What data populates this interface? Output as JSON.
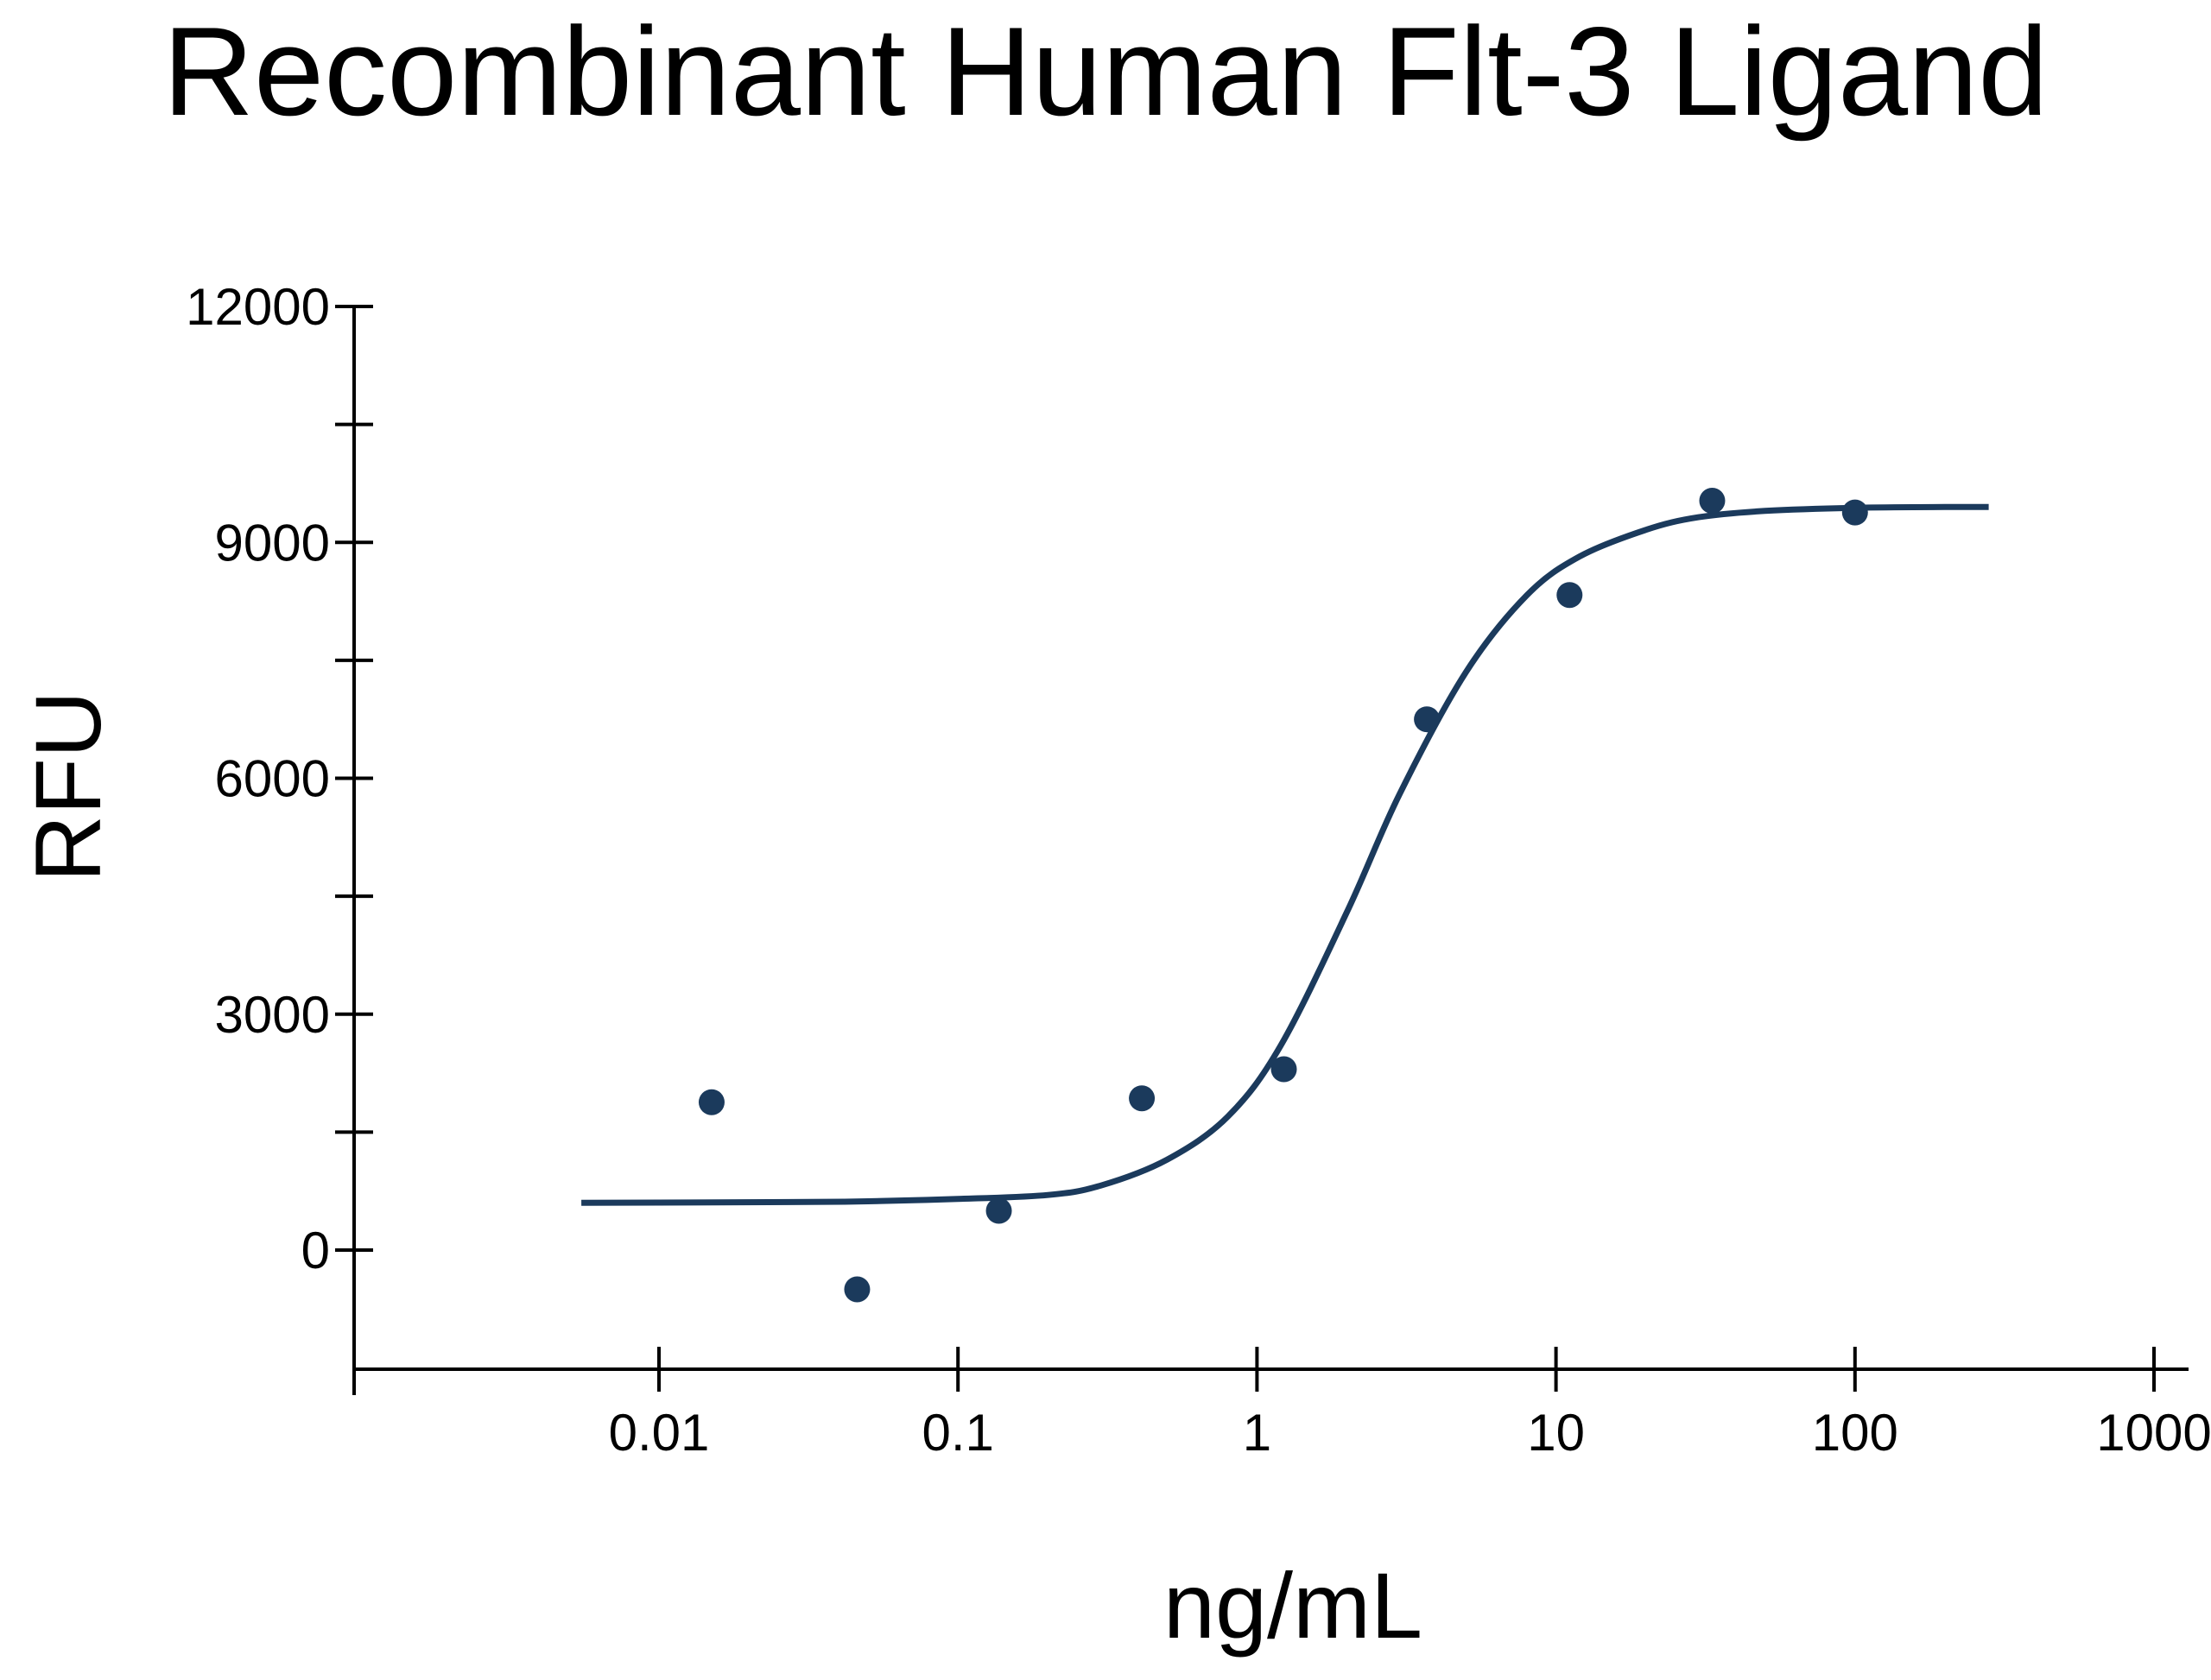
{
  "chart_data": {
    "type": "scatter",
    "title": "Recombinant Human Flt-3 Ligand",
    "xlabel": "ng/mL",
    "ylabel": "RFU",
    "x_scale": "log",
    "xlim": [
      0.001,
      1000
    ],
    "ylim": [
      -1500,
      12000
    ],
    "x_ticks": [
      0.01,
      0.1,
      1,
      10,
      100,
      1000
    ],
    "x_tick_labels": [
      "0.01",
      "0.1",
      "1",
      "10",
      "100",
      "1000"
    ],
    "y_ticks": [
      0,
      3000,
      6000,
      9000,
      12000
    ],
    "y_tick_labels": [
      "0",
      "3000",
      "6000",
      "9000",
      "12000"
    ],
    "y_minor_ticks": [
      1500,
      4500,
      7500,
      10500
    ],
    "grid": false,
    "legend": "none",
    "series": [
      {
        "kind": "points",
        "color": "#1b3a5c",
        "x": [
          0.015,
          0.046,
          0.137,
          0.412,
          1.23,
          3.7,
          11.1,
          33.3,
          100
        ],
        "y": [
          1880,
          -500,
          500,
          1930,
          2300,
          6750,
          8330,
          9530,
          9380
        ]
      },
      {
        "kind": "fit-line",
        "color": "#1b3a5c",
        "x": [
          0.0055,
          0.0275,
          0.05,
          0.1,
          0.2,
          0.3,
          0.5,
          0.8,
          1.2,
          2,
          3,
          5,
          8,
          12,
          20,
          30,
          50,
          100,
          200,
          280
        ],
        "y": [
          600,
          610,
          620,
          650,
          700,
          820,
          1150,
          1700,
          2600,
          4300,
          5800,
          7350,
          8330,
          8820,
          9160,
          9320,
          9400,
          9440,
          9450,
          9450
        ]
      }
    ]
  }
}
